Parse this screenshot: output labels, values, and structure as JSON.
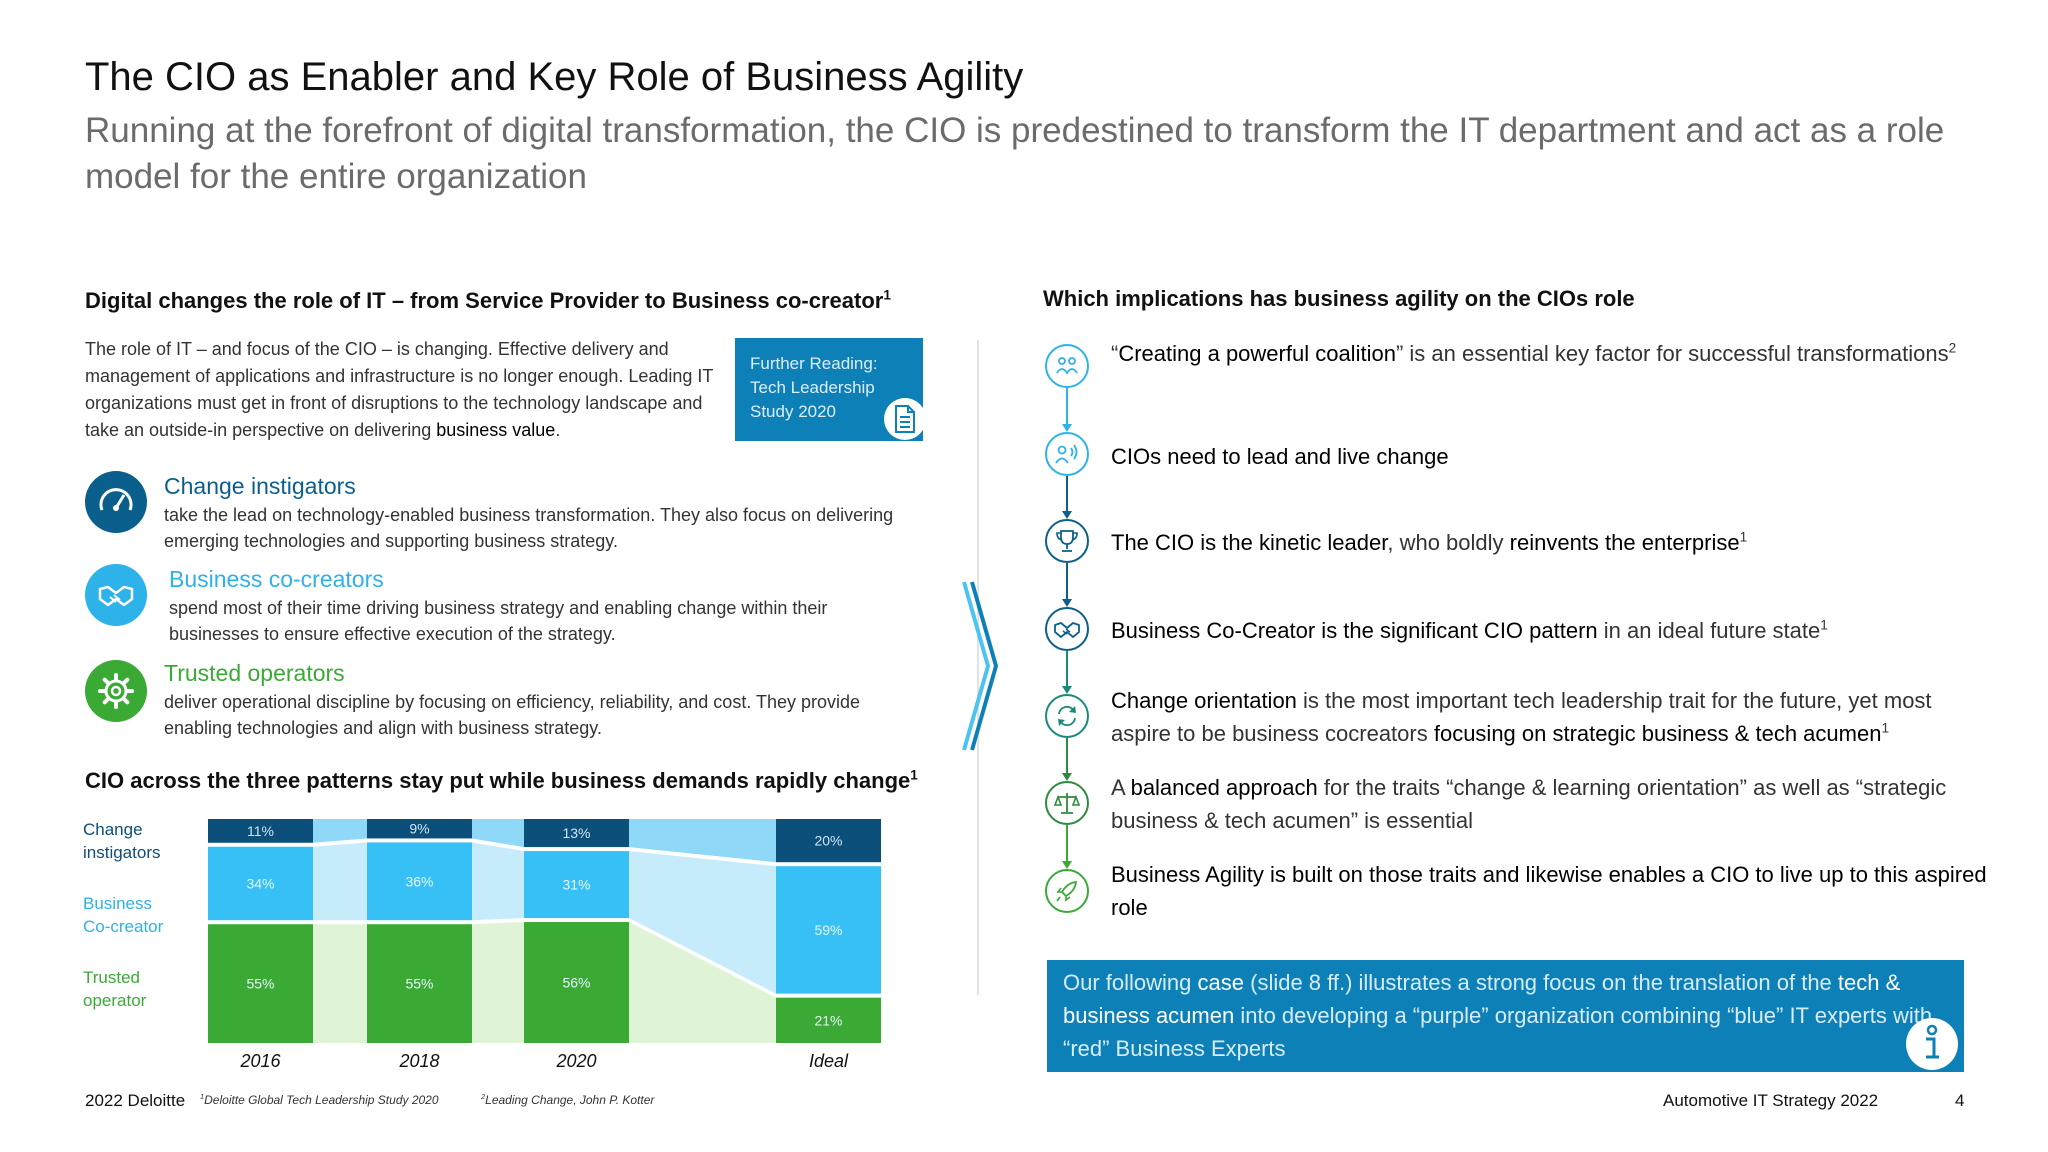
{
  "header": {
    "title": "The CIO as Enabler and Key Role of Business Agility",
    "subtitle": "Running at the forefront of digital transformation, the CIO is predestined to transform the IT department and act as a role model for the entire organization"
  },
  "left": {
    "heading": "Digital changes the role of IT – from Service Provider to Business co-creator",
    "heading_sup": "1",
    "intro_text": "The role of IT – and focus of the CIO – is changing. Effective delivery and management of applications and infrastructure is no longer enough. Leading IT organizations must get in front of disruptions to the technology landscape and take an outside-in perspective on delivering",
    "intro_bold": "business value",
    "intro_end": ".",
    "further_reading": [
      "Further Reading:",
      "Tech Leadership",
      "Study 2020"
    ],
    "patterns": [
      {
        "name": "Change instigators",
        "desc": "take the lead on technology-enabled business transformation. They also focus on delivering emerging technologies and supporting business strategy.",
        "color": "#0b5f8c",
        "icon": "speedometer-icon"
      },
      {
        "name": "Business co-creators",
        "desc": "spend most of their time driving business strategy and enabling change within their businesses to ensure effective execution of the strategy.",
        "color": "#2db2ea",
        "icon": "handshake-icon"
      },
      {
        "name": "Trusted operators",
        "desc": "deliver operational discipline by focusing on efficiency, reliability, and cost. They provide enabling technologies and align with business strategy.",
        "color": "#3aaa35",
        "icon": "gear-icon"
      }
    ],
    "chart_heading": "CIO across the three patterns stay put while business demands rapidly change",
    "chart_heading_sup": "1"
  },
  "chart_data": {
    "type": "bar",
    "stacked": true,
    "categories": [
      "2016",
      "2018",
      "2020",
      "Ideal"
    ],
    "series": [
      {
        "name": "Trusted operator",
        "values": [
          55,
          55,
          56,
          21
        ],
        "color": "#3aaa35"
      },
      {
        "name": "Business Co-creator",
        "values": [
          34,
          36,
          31,
          59
        ],
        "color": "#36c0f5"
      },
      {
        "name": "Change instigators",
        "values": [
          11,
          9,
          13,
          20
        ],
        "color": "#0b4f7a"
      }
    ],
    "legend_labels": [
      {
        "lines": [
          "Change",
          "instigators"
        ],
        "color": "#0b4f7a"
      },
      {
        "lines": [
          "Business",
          "Co-creator"
        ],
        "color": "#2db2ea"
      },
      {
        "lines": [
          "Trusted",
          "operator"
        ],
        "color": "#3aaa35"
      }
    ],
    "value_labels_suffix": "%",
    "ylim": [
      0,
      100
    ]
  },
  "right": {
    "heading": "Which implications has business agility on the CIOs role",
    "items": [
      {
        "icon": "coalition-icon",
        "color": "#2db2ea",
        "parts": [
          [
            "n",
            "“"
          ],
          [
            "b",
            "Creating a powerful coalition"
          ],
          [
            "n",
            "” is an essential key factor for successful transformations"
          ],
          [
            "s",
            "2"
          ]
        ]
      },
      {
        "icon": "leader-speaking-icon",
        "color": "#2db2ea",
        "parts": [
          [
            "b",
            "CIOs need to lead and live change"
          ]
        ]
      },
      {
        "icon": "trophy-icon",
        "color": "#0b5f8c",
        "parts": [
          [
            "b",
            "The CIO is the kinetic leader"
          ],
          [
            "n",
            ", who boldly "
          ],
          [
            "b",
            "reinvents the enterprise"
          ],
          [
            "s",
            "1"
          ]
        ]
      },
      {
        "icon": "handshake-icon",
        "color": "#0b5f8c",
        "parts": [
          [
            "b",
            "Business Co-Creator is the significant CIO pattern"
          ],
          [
            "n",
            " in an ideal future state"
          ],
          [
            "s",
            "1"
          ]
        ]
      },
      {
        "icon": "refresh-icon",
        "color": "#1a8a78",
        "parts": [
          [
            "b",
            "Change orientation"
          ],
          [
            "n",
            " is the most important tech leadership trait for the future, yet most aspire to be business cocreators "
          ],
          [
            "b",
            "focusing on strategic business & tech acumen"
          ],
          [
            "s",
            "1"
          ]
        ]
      },
      {
        "icon": "balance-scale-icon",
        "color": "#2e8b3d",
        "parts": [
          [
            "n",
            "A "
          ],
          [
            "b",
            "balanced approach"
          ],
          [
            "n",
            " for the traits “change & learning orientation” as well as “strategic business & tech acumen” is essential"
          ]
        ]
      },
      {
        "icon": "rocket-icon",
        "color": "#3aaa35",
        "parts": [
          [
            "b",
            "Business Agility is built on those traits and likewise enables a CIO to live up to this aspired role"
          ]
        ]
      }
    ],
    "info_parts": [
      [
        "n",
        "Our following "
      ],
      [
        "b",
        "case"
      ],
      [
        "n",
        " (slide 8 ff.) illustrates a strong focus on the translation of the "
      ],
      [
        "b",
        "tech & business acumen"
      ],
      [
        "n",
        " into developing a “purple” organization combining “blue” IT experts with “red” Business Experts"
      ]
    ]
  },
  "footer": {
    "copyright": "2022 Deloitte",
    "note1_sup": "1",
    "note1": "Deloitte Global Tech Leadership Study 2020",
    "note2_sup": "2",
    "note2": "Leading Change, John P.  Kotter",
    "doc_title": "Automotive IT Strategy 2022",
    "page": "4"
  }
}
